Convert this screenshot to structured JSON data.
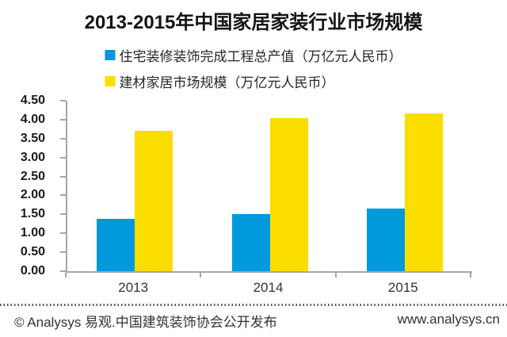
{
  "title": "2013-2015年中国家居家装行业市场规模",
  "footer": {
    "left": "© Analysys 易观.中国建筑装饰协会公开发布",
    "right": "www.analysys.cn"
  },
  "colors": {
    "axis": "#a6a6a6",
    "blue": "#0099DB",
    "yellow": "#FCDD00"
  },
  "chart_data": {
    "type": "bar",
    "title": "2013-2015年中国家居家装行业市场规模",
    "categories": [
      "2013",
      "2014",
      "2015"
    ],
    "series": [
      {
        "name": "住宅装修装饰完成工程总产值（万亿元人民币）",
        "color": "#0099DB",
        "values": [
          1.38,
          1.51,
          1.66
        ]
      },
      {
        "name": "建材家居市场规模（万亿元人民币）",
        "color": "#FCDD00",
        "values": [
          3.7,
          4.04,
          4.16
        ]
      }
    ],
    "ylim": [
      0,
      4.5
    ],
    "ytick_step": 0.5,
    "ytick_labels": [
      "0.00",
      "0.50",
      "1.00",
      "1.50",
      "2.00",
      "2.50",
      "3.00",
      "3.50",
      "4.00",
      "4.50"
    ],
    "xlabel": "",
    "ylabel": "",
    "grid": false,
    "legend_position": "top"
  }
}
